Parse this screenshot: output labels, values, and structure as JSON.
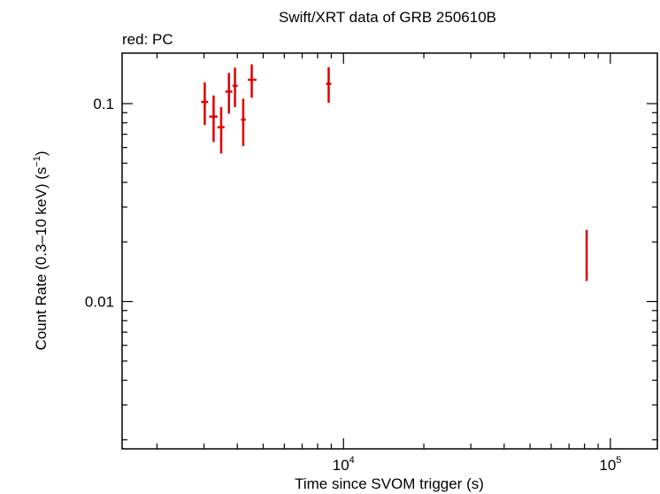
{
  "chart_data": {
    "type": "scatter",
    "title": "Swift/XRT data of GRB 250610B",
    "subtitle": "red: PC",
    "xlabel": "Time since SVOM trigger (s)",
    "ylabel_main": "Count Rate (0.3–10 keV) (s",
    "ylabel_sup": "−1",
    "ylabel_close": ")",
    "x_scale": "log",
    "y_scale": "log",
    "xlim": [
      1480,
      150000
    ],
    "ylim": [
      0.0018,
      0.18
    ],
    "x_tick_labels": [
      {
        "value": 10000,
        "base": "10",
        "exp": "4"
      },
      {
        "value": 100000,
        "base": "10",
        "exp": "5"
      }
    ],
    "y_tick_labels": [
      {
        "value": 0.1,
        "label": "0.1"
      },
      {
        "value": 0.01,
        "label": "0.01"
      }
    ],
    "series": [
      {
        "color": "#e00000",
        "points": [
          {
            "x": 3020,
            "xerr": [
              2930,
              3110
            ],
            "y": 0.102,
            "yerr": [
              0.078,
              0.128
            ]
          },
          {
            "x": 3260,
            "xerr": [
              3140,
              3370
            ],
            "y": 0.086,
            "yerr": [
              0.064,
              0.11
            ]
          },
          {
            "x": 3480,
            "xerr": [
              3370,
              3580
            ],
            "y": 0.076,
            "yerr": [
              0.056,
              0.096
            ]
          },
          {
            "x": 3720,
            "xerr": [
              3610,
              3830
            ],
            "y": 0.115,
            "yerr": [
              0.089,
              0.143
            ]
          },
          {
            "x": 3920,
            "xerr": [
              3840,
              4010
            ],
            "y": 0.123,
            "yerr": [
              0.096,
              0.152
            ]
          },
          {
            "x": 4210,
            "xerr": [
              4130,
              4300
            ],
            "y": 0.083,
            "yerr": [
              0.061,
              0.106
            ]
          },
          {
            "x": 4530,
            "xerr": [
              4380,
              4720
            ],
            "y": 0.132,
            "yerr": [
              0.107,
              0.158
            ]
          },
          {
            "x": 8800,
            "xerr": [
              8600,
              9000
            ],
            "y": 0.126,
            "yerr": [
              0.101,
              0.153
            ]
          },
          {
            "x": 81500,
            "xerr": [
              81000,
              82000
            ],
            "y": 0.0175,
            "yerr": [
              0.0127,
              0.023
            ]
          }
        ]
      }
    ]
  }
}
